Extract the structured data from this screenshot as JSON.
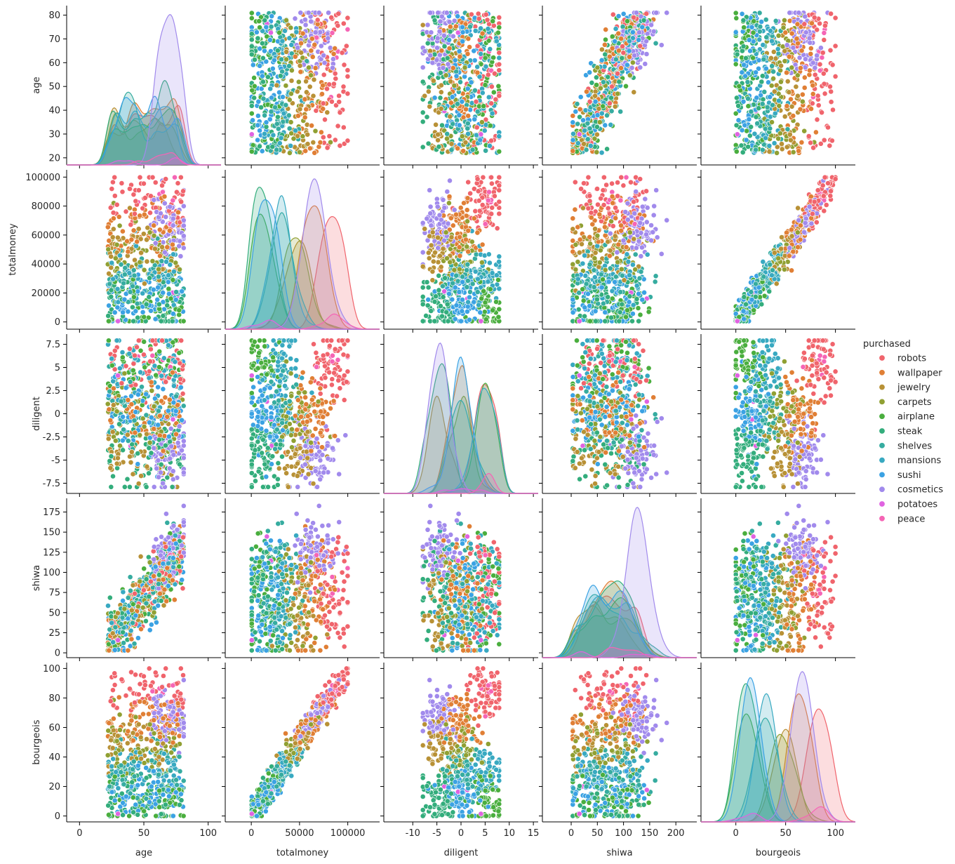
{
  "chart_data": {
    "type": "scatter",
    "kind": "pairplot",
    "variables": [
      "age",
      "totalmoney",
      "diligent",
      "shiwa",
      "bourgeois"
    ],
    "axes": {
      "age": {
        "range": [
          -10,
          110
        ],
        "ticks": [
          0,
          50,
          100
        ],
        "diag_ticks": [
          20,
          30,
          40,
          50,
          60,
          70,
          80
        ],
        "data_range": [
          22,
          81
        ]
      },
      "totalmoney": {
        "range": [
          -27000,
          133000
        ],
        "ticks": [
          0,
          50000,
          100000
        ],
        "y_ticks": [
          0,
          20000,
          40000,
          60000,
          80000,
          100000
        ],
        "data_range": [
          500,
          99800
        ]
      },
      "diligent": {
        "range": [
          -16,
          16
        ],
        "ticks": [
          -10,
          -5,
          0,
          5,
          10,
          15
        ],
        "y_ticks": [
          -7.5,
          -5.0,
          -2.5,
          0.0,
          2.5,
          5.0,
          7.5
        ],
        "data_range": [
          -7.9,
          7.9
        ]
      },
      "shiwa": {
        "range": [
          -55,
          240
        ],
        "ticks": [
          0,
          50,
          100,
          150,
          200
        ],
        "y_ticks": [
          0,
          25,
          50,
          75,
          100,
          125,
          150,
          175
        ],
        "data_range": [
          3,
          183
        ]
      },
      "bourgeois": {
        "range": [
          -35,
          120
        ],
        "ticks": [
          0,
          50,
          100
        ],
        "y_ticks": [
          0,
          20,
          40,
          60,
          80,
          100
        ],
        "data_range": [
          0,
          100
        ]
      }
    },
    "legend": {
      "title": "purchased",
      "placement": "center-right",
      "entries": [
        {
          "name": "robots",
          "color": "#f0646c"
        },
        {
          "name": "wallpaper",
          "color": "#e07f35"
        },
        {
          "name": "jewelry",
          "color": "#b89136"
        },
        {
          "name": "carpets",
          "color": "#90a033"
        },
        {
          "name": "airplane",
          "color": "#4aae3e"
        },
        {
          "name": "steak",
          "color": "#33ad7c"
        },
        {
          "name": "shelves",
          "color": "#36aca0"
        },
        {
          "name": "mansions",
          "color": "#38a9c1"
        },
        {
          "name": "sushi",
          "color": "#3ba2e3"
        },
        {
          "name": "cosmetics",
          "color": "#a18aec"
        },
        {
          "name": "potatoes",
          "color": "#e063e1"
        },
        {
          "name": "peace",
          "color": "#f565b5"
        }
      ]
    },
    "diagonal": "kde",
    "off_diagonal": "scatter",
    "grid": false
  }
}
